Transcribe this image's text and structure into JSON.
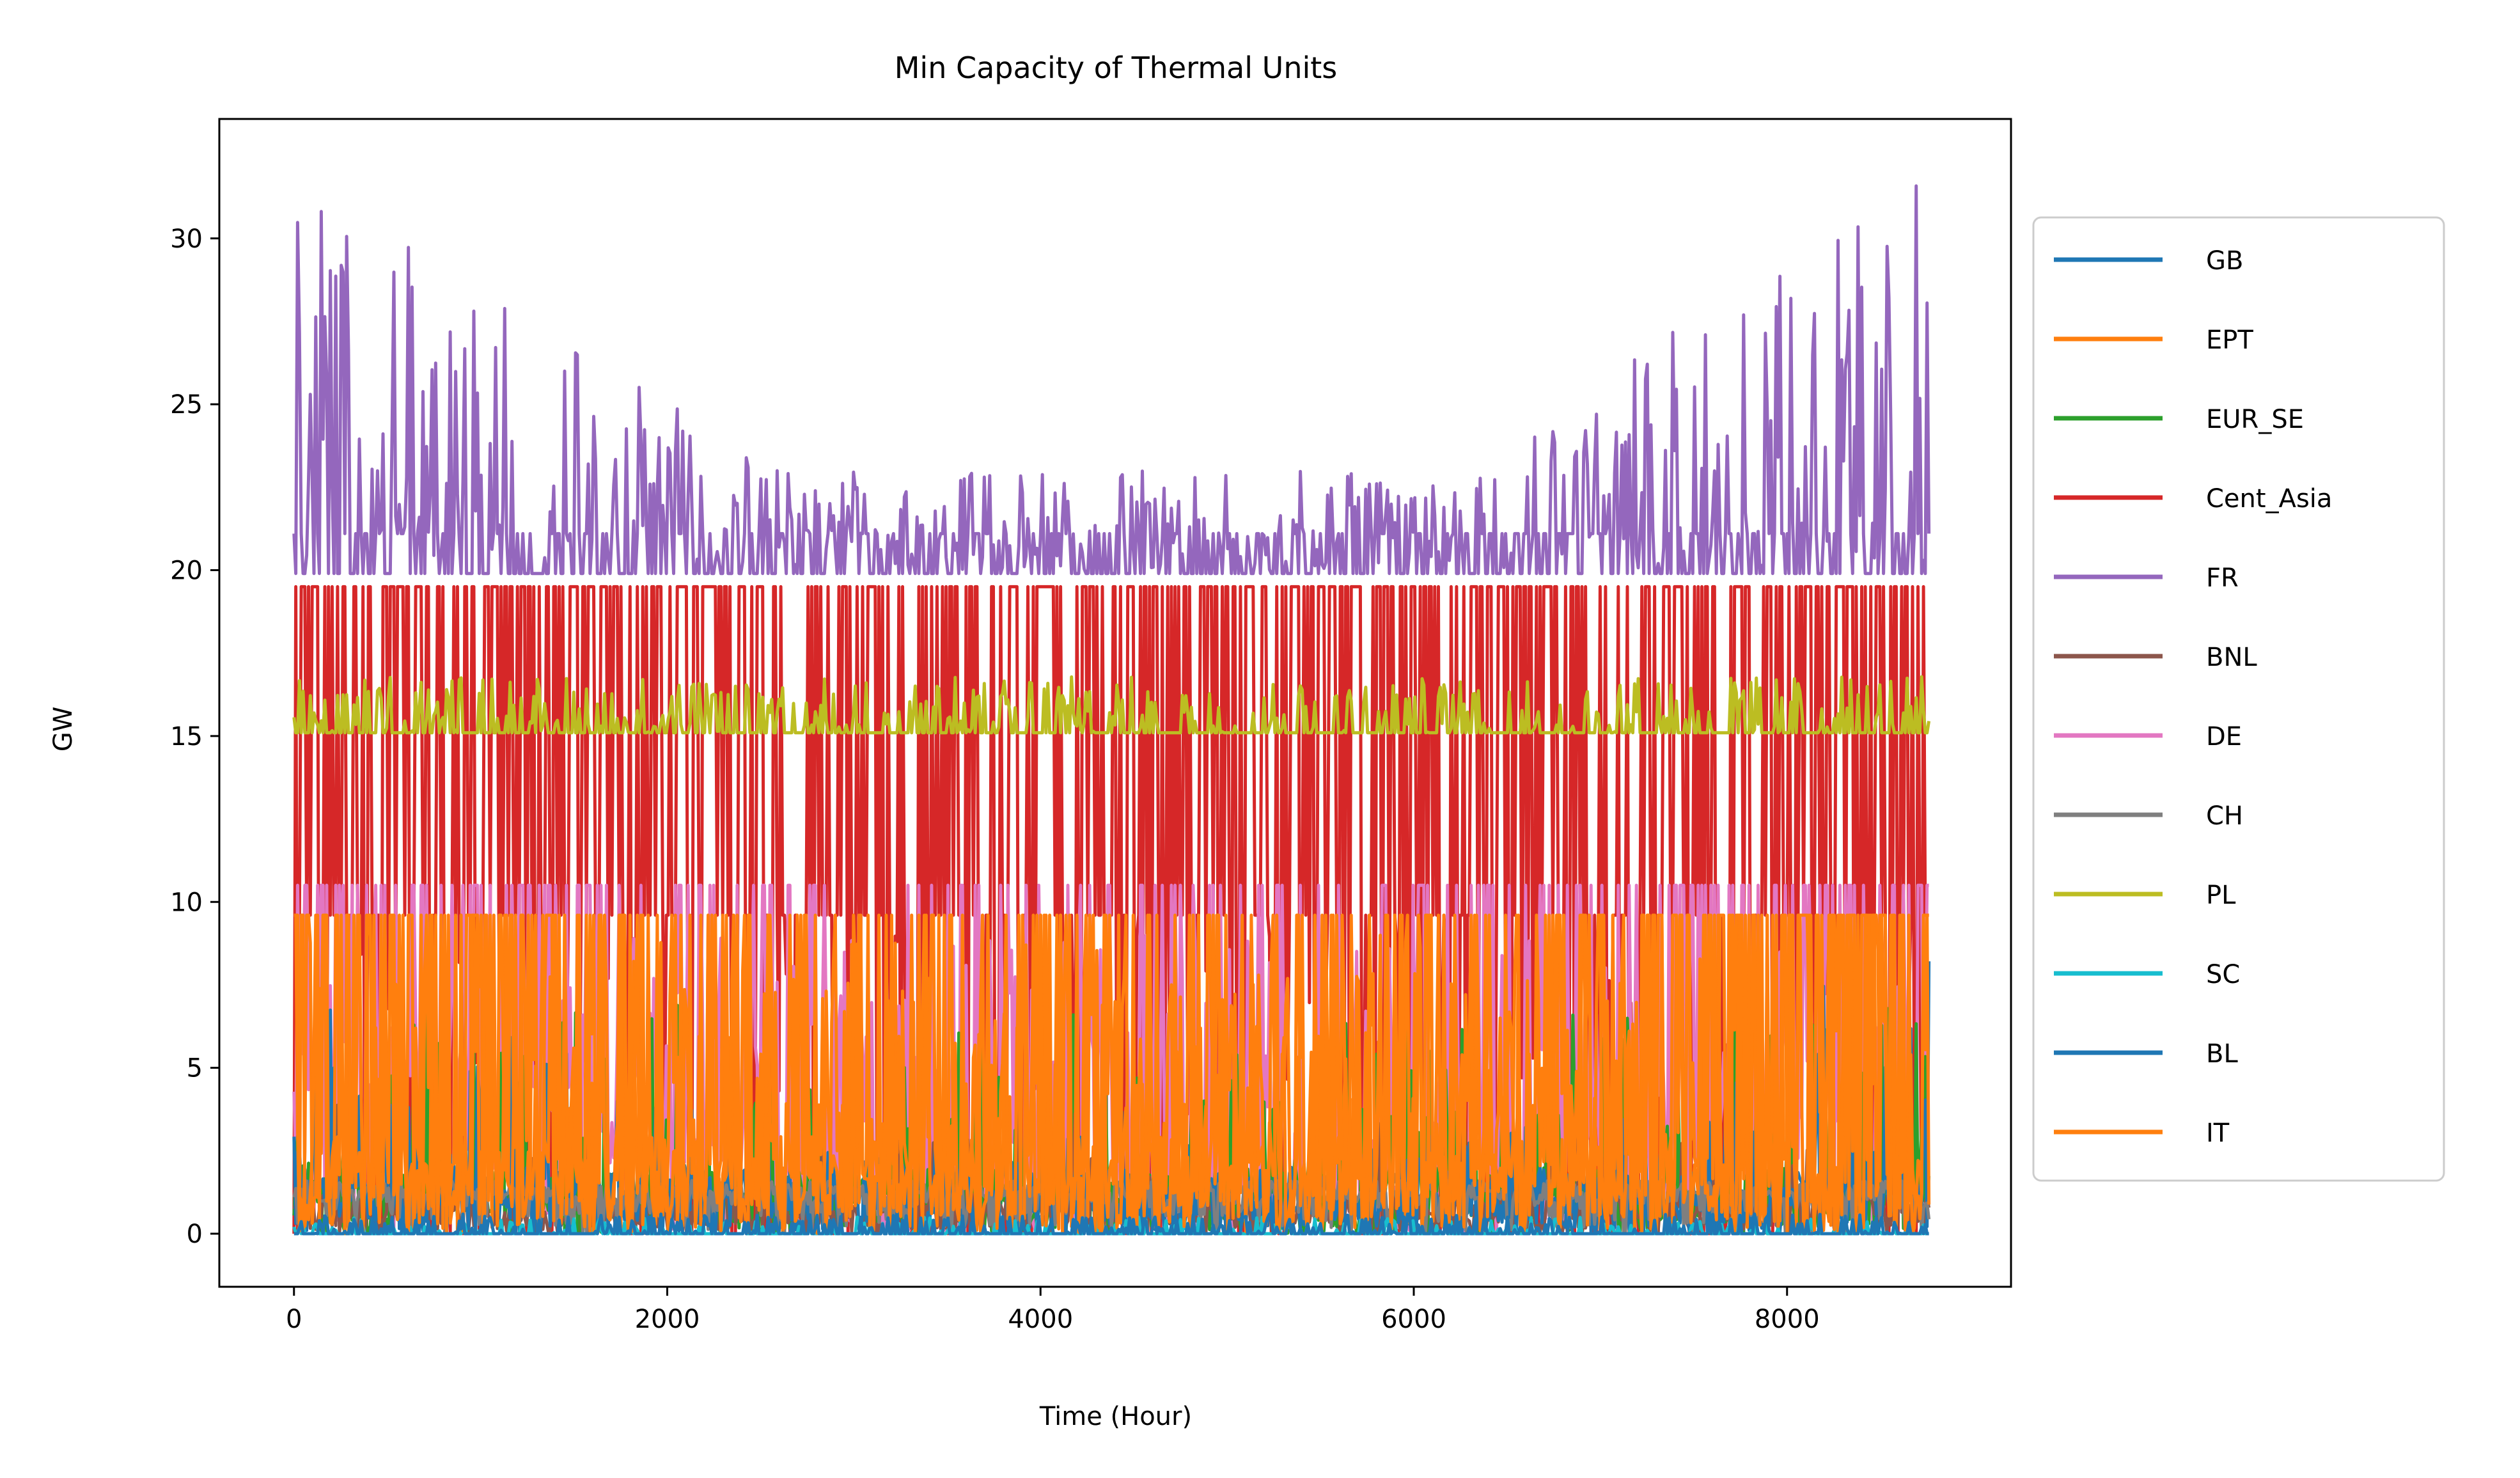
{
  "chart_data": {
    "type": "line",
    "title": "Min Capacity of Thermal Units",
    "xlabel": "Time (Hour)",
    "ylabel": "GW",
    "xlim": [
      -400,
      9200
    ],
    "ylim": [
      -1.6,
      33.6
    ],
    "xticks": [
      0,
      2000,
      4000,
      6000,
      8000
    ],
    "xtick_labels": [
      "0",
      "2000",
      "4000",
      "6000",
      "8000"
    ],
    "yticks": [
      0,
      5,
      10,
      15,
      20,
      25,
      30
    ],
    "ytick_labels": [
      "0",
      "5",
      "10",
      "15",
      "20",
      "25",
      "30"
    ],
    "grid": false,
    "legend_position": "right-outside",
    "series": [
      {
        "name": "GB",
        "color": "#1f77b4",
        "min": 0,
        "max": 0.6
      },
      {
        "name": "EPT",
        "color": "#ff7f0e",
        "min": 0,
        "max": 9.6
      },
      {
        "name": "EUR_SE",
        "color": "#2ca02c",
        "min": 0,
        "max": 9.6
      },
      {
        "name": "Cent_Asia",
        "color": "#d62728",
        "min": 0,
        "max": 19.5
      },
      {
        "name": "FR",
        "color": "#9467bd",
        "min": 19.9,
        "max": 32.0
      },
      {
        "name": "BNL",
        "color": "#8c564b",
        "min": 0,
        "max": 5
      },
      {
        "name": "DE",
        "color": "#e377c2",
        "min": 0,
        "max": 10.5
      },
      {
        "name": "CH",
        "color": "#7f7f7f",
        "min": 0,
        "max": 1.6
      },
      {
        "name": "PL",
        "color": "#bcbd22",
        "min": 15.1,
        "max": 16.8
      },
      {
        "name": "SC",
        "color": "#17becf",
        "min": 0,
        "max": 0.5
      },
      {
        "name": "BL",
        "color": "#1f77b4",
        "min": 0,
        "max": 9.6
      },
      {
        "name": "IT",
        "color": "#ff7f0e",
        "min": 0,
        "max": 9.6
      }
    ],
    "x_range": [
      0,
      8760
    ]
  }
}
